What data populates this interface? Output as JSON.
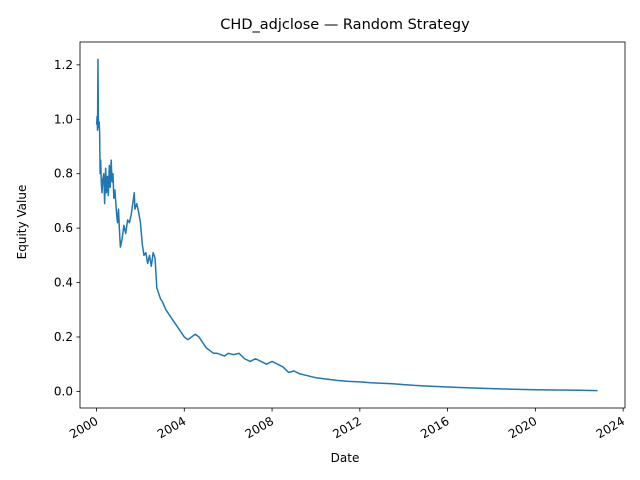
{
  "chart_data": {
    "type": "line",
    "title": "CHD_adjclose — Random Strategy",
    "xlabel": "Date",
    "ylabel": "Equity Value",
    "xlim": [
      "1999-04-01",
      "2024-02-01"
    ],
    "ylim": [
      -0.061,
      1.284
    ],
    "grid": false,
    "legend": "none",
    "line_color": "#1f77b4",
    "x_ticks": [
      "2000",
      "2004",
      "2008",
      "2012",
      "2016",
      "2020",
      "2024"
    ],
    "y_ticks": [
      "0.0",
      "0.2",
      "0.4",
      "0.6",
      "0.8",
      "1.0",
      "1.2"
    ],
    "series": [
      {
        "x": [
          "2000-01-03",
          "2000-01-10",
          "2000-01-18",
          "2000-01-25",
          "2000-02-01",
          "2000-02-08",
          "2000-02-15",
          "2000-02-22",
          "2000-03-01",
          "2000-03-10",
          "2000-03-20",
          "2000-04-01",
          "2000-04-15",
          "2000-05-01",
          "2000-05-15",
          "2000-06-01",
          "2000-06-15",
          "2000-07-01",
          "2000-07-15",
          "2000-08-01",
          "2000-08-15",
          "2000-09-01",
          "2000-09-15",
          "2000-10-01",
          "2000-10-15",
          "2000-11-01",
          "2000-11-15",
          "2000-12-01",
          "2000-12-15",
          "2001-01-01",
          "2001-01-15",
          "2001-02-01",
          "2001-03-01",
          "2001-04-01",
          "2001-05-01",
          "2001-06-01",
          "2001-07-01",
          "2001-08-01",
          "2001-09-01",
          "2001-09-20",
          "2001-10-01",
          "2001-11-01",
          "2001-12-01",
          "2002-01-01",
          "2002-02-01",
          "2002-03-01",
          "2002-04-01",
          "2002-05-01",
          "2002-06-01",
          "2002-07-01",
          "2002-08-01",
          "2002-09-01",
          "2002-10-01",
          "2002-11-01",
          "2002-12-01",
          "2003-01-01",
          "2003-03-01",
          "2003-05-01",
          "2003-07-01",
          "2003-09-01",
          "2003-11-01",
          "2004-01-01",
          "2004-03-01",
          "2004-05-01",
          "2004-07-01",
          "2004-09-01",
          "2004-11-01",
          "2005-01-01",
          "2005-03-01",
          "2005-05-01",
          "2005-07-01",
          "2005-09-01",
          "2005-11-01",
          "2006-01-01",
          "2006-04-01",
          "2006-07-01",
          "2006-10-01",
          "2007-01-01",
          "2007-04-01",
          "2007-07-01",
          "2007-10-01",
          "2008-01-01",
          "2008-04-01",
          "2008-07-01",
          "2008-10-01",
          "2009-01-01",
          "2009-04-01",
          "2009-07-01",
          "2009-10-01",
          "2010-01-01",
          "2010-07-01",
          "2011-01-01",
          "2011-07-01",
          "2012-01-01",
          "2012-07-01",
          "2013-01-01",
          "2013-07-01",
          "2014-01-01",
          "2014-07-01",
          "2015-01-01",
          "2016-01-01",
          "2017-01-01",
          "2018-01-01",
          "2019-01-01",
          "2020-01-01",
          "2021-01-01",
          "2022-01-01",
          "2022-11-01"
        ],
        "y": [
          0.98,
          1.01,
          0.96,
          1.22,
          1.0,
          0.97,
          0.99,
          0.95,
          0.8,
          0.85,
          0.77,
          0.73,
          0.78,
          0.8,
          0.69,
          0.82,
          0.73,
          0.79,
          0.72,
          0.83,
          0.75,
          0.85,
          0.77,
          0.8,
          0.71,
          0.74,
          0.7,
          0.65,
          0.62,
          0.67,
          0.6,
          0.53,
          0.56,
          0.61,
          0.58,
          0.63,
          0.62,
          0.65,
          0.7,
          0.73,
          0.67,
          0.69,
          0.66,
          0.62,
          0.54,
          0.5,
          0.51,
          0.47,
          0.5,
          0.46,
          0.51,
          0.49,
          0.38,
          0.36,
          0.34,
          0.33,
          0.3,
          0.28,
          0.26,
          0.24,
          0.22,
          0.2,
          0.19,
          0.2,
          0.21,
          0.2,
          0.18,
          0.16,
          0.15,
          0.14,
          0.14,
          0.135,
          0.13,
          0.14,
          0.135,
          0.14,
          0.12,
          0.11,
          0.12,
          0.11,
          0.1,
          0.11,
          0.1,
          0.09,
          0.07,
          0.075,
          0.065,
          0.06,
          0.055,
          0.05,
          0.045,
          0.04,
          0.037,
          0.035,
          0.032,
          0.03,
          0.028,
          0.025,
          0.022,
          0.02,
          0.016,
          0.013,
          0.01,
          0.008,
          0.006,
          0.005,
          0.004,
          0.003
        ]
      }
    ]
  }
}
